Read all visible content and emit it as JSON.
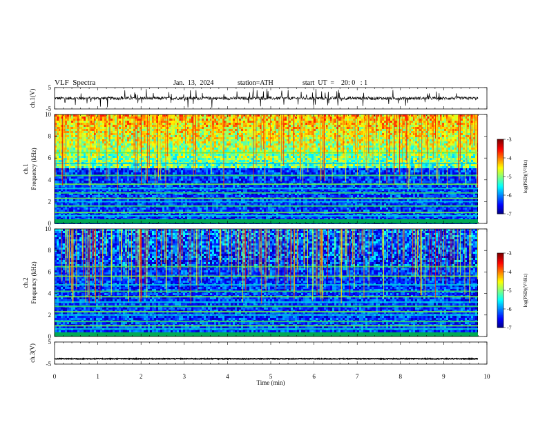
{
  "header": {
    "title": "VLF  Spectra",
    "date": "Jan.  13,  2024",
    "station": "station=ATH",
    "start": "start  UT  =    20: 0   : 1"
  },
  "colors": {
    "frame": "#000000",
    "trace": "#000000",
    "background_dark": "#00003a"
  },
  "chart_data": [
    {
      "type": "line",
      "name": "ch1-waveform",
      "ylabel": "ch.1(V)",
      "ylim": [
        -5,
        5
      ],
      "ytick_labels": [
        "5",
        "-5"
      ],
      "xlim": [
        0,
        10
      ],
      "mean_value": 0,
      "grid": false
    },
    {
      "type": "heatmap",
      "name": "ch1-spectrogram",
      "ylabel_top": "ch.1",
      "ylabel": "Frequency  (kHz)",
      "ylim": [
        0,
        10
      ],
      "ytick_labels": [
        "0",
        "2",
        "4",
        "6",
        "8",
        "10"
      ],
      "xlim": [
        0,
        10
      ],
      "colorbar": {
        "label": "log(PSD)(V²/Hz)",
        "range": [
          -7,
          -3
        ],
        "tick_labels": [
          "-3",
          "-4",
          "-5",
          "-6",
          "-7"
        ]
      },
      "bands_khz": [
        0.3,
        0.7,
        1.0,
        1.6,
        2.0,
        2.3,
        2.8,
        3.2,
        3.6,
        4.4,
        5.5,
        6.5
      ],
      "upper_noise_start_khz": 5.0
    },
    {
      "type": "heatmap",
      "name": "ch2-spectrogram",
      "ylabel_top": "ch.2",
      "ylabel": "Frequency  (kHz)",
      "ylim": [
        0,
        10
      ],
      "ytick_labels": [
        "0",
        "2",
        "4",
        "6",
        "8",
        "10"
      ],
      "xlim": [
        0,
        10
      ],
      "colorbar": {
        "label": "log(PSD)(V²/Hz)",
        "range": [
          -7,
          -3
        ],
        "tick_labels": [
          "-3",
          "-4",
          "-5",
          "-6",
          "-7"
        ]
      },
      "bands_khz": [
        0.3,
        0.7,
        1.0,
        1.4,
        2.0,
        2.3,
        2.8,
        3.2,
        3.7,
        4.2,
        4.8,
        5.6,
        6.5
      ],
      "upper_noise_start_khz": 6.5
    },
    {
      "type": "line",
      "name": "ch3-waveform",
      "ylabel": "ch.3(V)",
      "ylim": [
        -5,
        5
      ],
      "ytick_labels": [
        "5",
        "-5"
      ],
      "xlim": [
        0,
        10
      ],
      "xlabel": "Time  (min)",
      "xtick_labels": [
        "0",
        "1",
        "2",
        "3",
        "4",
        "5",
        "6",
        "7",
        "8",
        "9",
        "10"
      ],
      "mean_value": -2.6,
      "grid": false
    }
  ]
}
